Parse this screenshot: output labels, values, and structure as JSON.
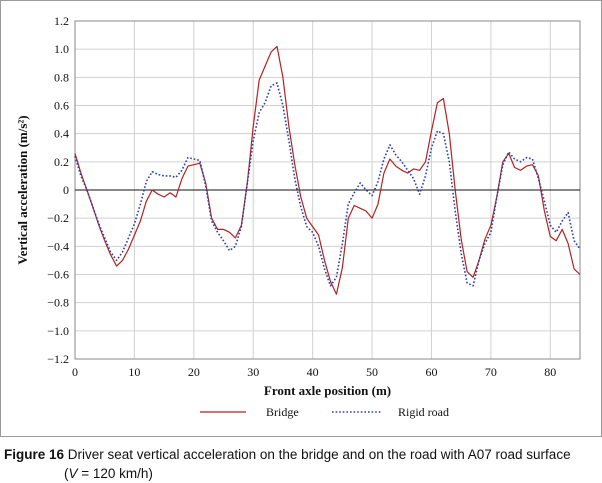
{
  "chart_data": {
    "type": "line",
    "xlabel": "Front axle position (m)",
    "ylabel": "Vertical acceleration (m/s²)",
    "xlim": [
      0,
      85
    ],
    "ylim": [
      -1.2,
      1.2
    ],
    "x_ticks": [
      "0",
      "10",
      "20",
      "30",
      "40",
      "50",
      "60",
      "70",
      "80"
    ],
    "y_ticks": [
      "1.2",
      "1.0",
      "0.8",
      "0.6",
      "0.4",
      "0.2",
      "0",
      "−0.2",
      "−0.4",
      "−0.6",
      "−0.8",
      "−1.0",
      "−1.2"
    ],
    "grid": true,
    "legend_position": "bottom",
    "series": [
      {
        "name": "Bridge",
        "color": "#b22222",
        "style": "solid",
        "points": [
          [
            0,
            0.26
          ],
          [
            1,
            0.12
          ],
          [
            2,
            0.0
          ],
          [
            3,
            -0.12
          ],
          [
            4,
            -0.25
          ],
          [
            5,
            -0.36
          ],
          [
            6,
            -0.46
          ],
          [
            7,
            -0.54
          ],
          [
            8,
            -0.5
          ],
          [
            9,
            -0.42
          ],
          [
            10,
            -0.32
          ],
          [
            11,
            -0.22
          ],
          [
            12,
            -0.08
          ],
          [
            13,
            0.0
          ],
          [
            14,
            -0.03
          ],
          [
            15,
            -0.05
          ],
          [
            16,
            -0.02
          ],
          [
            17,
            -0.05
          ],
          [
            18,
            0.08
          ],
          [
            19,
            0.17
          ],
          [
            20,
            0.18
          ],
          [
            21,
            0.19
          ],
          [
            22,
            0.05
          ],
          [
            23,
            -0.2
          ],
          [
            24,
            -0.28
          ],
          [
            25,
            -0.28
          ],
          [
            26,
            -0.3
          ],
          [
            27,
            -0.34
          ],
          [
            28,
            -0.25
          ],
          [
            29,
            0.05
          ],
          [
            30,
            0.45
          ],
          [
            31,
            0.78
          ],
          [
            32,
            0.88
          ],
          [
            33,
            0.98
          ],
          [
            34,
            1.02
          ],
          [
            35,
            0.8
          ],
          [
            36,
            0.45
          ],
          [
            37,
            0.18
          ],
          [
            38,
            -0.05
          ],
          [
            39,
            -0.2
          ],
          [
            40,
            -0.26
          ],
          [
            41,
            -0.32
          ],
          [
            42,
            -0.5
          ],
          [
            43,
            -0.65
          ],
          [
            44,
            -0.74
          ],
          [
            45,
            -0.55
          ],
          [
            46,
            -0.2
          ],
          [
            47,
            -0.11
          ],
          [
            48,
            -0.13
          ],
          [
            49,
            -0.15
          ],
          [
            50,
            -0.2
          ],
          [
            51,
            -0.1
          ],
          [
            52,
            0.12
          ],
          [
            53,
            0.22
          ],
          [
            54,
            0.17
          ],
          [
            55,
            0.14
          ],
          [
            56,
            0.12
          ],
          [
            57,
            0.15
          ],
          [
            58,
            0.14
          ],
          [
            59,
            0.2
          ],
          [
            60,
            0.42
          ],
          [
            61,
            0.62
          ],
          [
            62,
            0.65
          ],
          [
            63,
            0.4
          ],
          [
            64,
            0.0
          ],
          [
            65,
            -0.35
          ],
          [
            66,
            -0.58
          ],
          [
            67,
            -0.62
          ],
          [
            68,
            -0.5
          ],
          [
            69,
            -0.35
          ],
          [
            70,
            -0.25
          ],
          [
            71,
            -0.05
          ],
          [
            72,
            0.2
          ],
          [
            73,
            0.26
          ],
          [
            74,
            0.16
          ],
          [
            75,
            0.14
          ],
          [
            76,
            0.17
          ],
          [
            77,
            0.18
          ],
          [
            78,
            0.1
          ],
          [
            79,
            -0.15
          ],
          [
            80,
            -0.33
          ],
          [
            81,
            -0.36
          ],
          [
            82,
            -0.28
          ],
          [
            83,
            -0.38
          ],
          [
            84,
            -0.56
          ],
          [
            85,
            -0.6
          ]
        ]
      },
      {
        "name": "Rigid road",
        "color": "#2b3ea8",
        "style": "dotted",
        "points": [
          [
            0,
            0.24
          ],
          [
            1,
            0.1
          ],
          [
            2,
            0.0
          ],
          [
            3,
            -0.12
          ],
          [
            4,
            -0.24
          ],
          [
            5,
            -0.34
          ],
          [
            6,
            -0.44
          ],
          [
            7,
            -0.5
          ],
          [
            8,
            -0.44
          ],
          [
            9,
            -0.34
          ],
          [
            10,
            -0.24
          ],
          [
            11,
            -0.1
          ],
          [
            12,
            0.06
          ],
          [
            13,
            0.13
          ],
          [
            14,
            0.11
          ],
          [
            15,
            0.1
          ],
          [
            16,
            0.1
          ],
          [
            17,
            0.09
          ],
          [
            18,
            0.14
          ],
          [
            19,
            0.23
          ],
          [
            20,
            0.22
          ],
          [
            21,
            0.21
          ],
          [
            22,
            0.03
          ],
          [
            23,
            -0.22
          ],
          [
            24,
            -0.3
          ],
          [
            25,
            -0.36
          ],
          [
            26,
            -0.43
          ],
          [
            27,
            -0.4
          ],
          [
            28,
            -0.26
          ],
          [
            29,
            0.05
          ],
          [
            30,
            0.35
          ],
          [
            31,
            0.55
          ],
          [
            32,
            0.62
          ],
          [
            33,
            0.74
          ],
          [
            34,
            0.76
          ],
          [
            35,
            0.6
          ],
          [
            36,
            0.35
          ],
          [
            37,
            0.08
          ],
          [
            38,
            -0.12
          ],
          [
            39,
            -0.26
          ],
          [
            40,
            -0.3
          ],
          [
            41,
            -0.4
          ],
          [
            42,
            -0.56
          ],
          [
            43,
            -0.68
          ],
          [
            44,
            -0.62
          ],
          [
            45,
            -0.38
          ],
          [
            46,
            -0.1
          ],
          [
            47,
            -0.02
          ],
          [
            48,
            0.05
          ],
          [
            49,
            0.0
          ],
          [
            50,
            -0.04
          ],
          [
            51,
            0.06
          ],
          [
            52,
            0.22
          ],
          [
            53,
            0.32
          ],
          [
            54,
            0.25
          ],
          [
            55,
            0.2
          ],
          [
            56,
            0.14
          ],
          [
            57,
            0.08
          ],
          [
            58,
            -0.03
          ],
          [
            59,
            0.1
          ],
          [
            60,
            0.3
          ],
          [
            61,
            0.42
          ],
          [
            62,
            0.4
          ],
          [
            63,
            0.2
          ],
          [
            64,
            -0.15
          ],
          [
            65,
            -0.45
          ],
          [
            66,
            -0.66
          ],
          [
            67,
            -0.68
          ],
          [
            68,
            -0.5
          ],
          [
            69,
            -0.38
          ],
          [
            70,
            -0.3
          ],
          [
            71,
            -0.05
          ],
          [
            72,
            0.18
          ],
          [
            73,
            0.27
          ],
          [
            74,
            0.22
          ],
          [
            75,
            0.2
          ],
          [
            76,
            0.23
          ],
          [
            77,
            0.22
          ],
          [
            78,
            0.08
          ],
          [
            79,
            -0.08
          ],
          [
            80,
            -0.25
          ],
          [
            81,
            -0.3
          ],
          [
            82,
            -0.22
          ],
          [
            83,
            -0.16
          ],
          [
            84,
            -0.36
          ],
          [
            85,
            -0.42
          ]
        ]
      }
    ]
  },
  "caption": {
    "label": "Figure 16",
    "text_line1": " Driver seat vertical acceleration on the bridge and on the road with A07 road surface",
    "text_line2_open": "(",
    "text_line2_var": "V",
    "text_line2_rest": " = 120 km/h)"
  }
}
